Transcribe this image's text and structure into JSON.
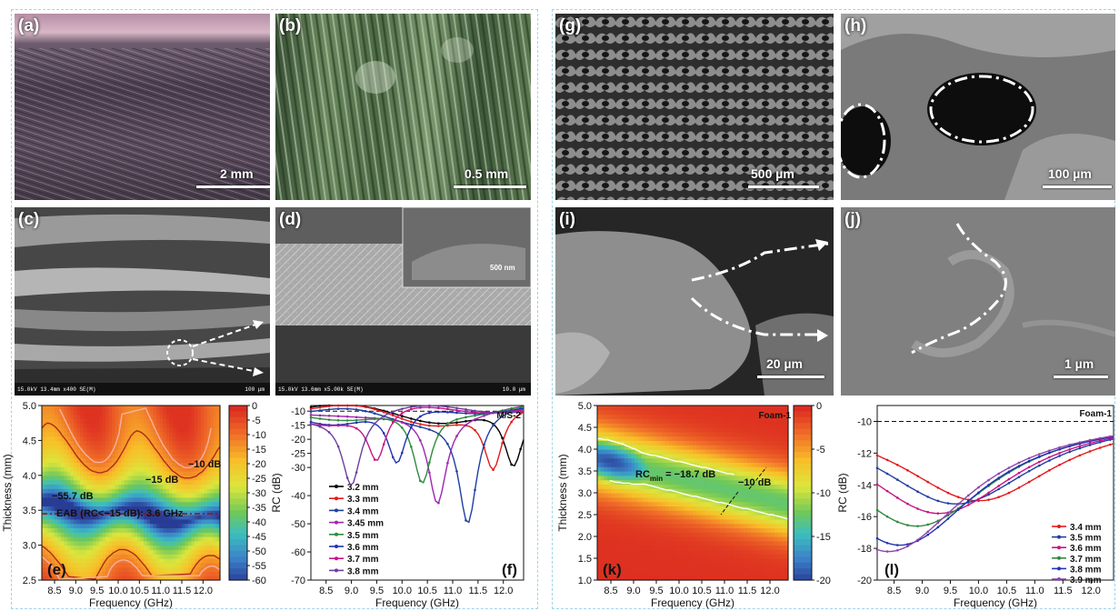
{
  "panels": {
    "a": {
      "letter": "(a)",
      "scale": "2 mm"
    },
    "b": {
      "letter": "(b)",
      "scale": "0.5 mm"
    },
    "c": {
      "letter": "(c)",
      "sem_info": "15.0kV 13.4mm x400 SE(M)",
      "scale": "100 µm"
    },
    "d": {
      "letter": "(d)",
      "sem_info": "15.0kV 13.6mm x5.00k SE(M)",
      "scale": "10.0 µm",
      "inset_scale": "500 nm"
    },
    "g": {
      "letter": "(g)",
      "scale": "500 µm"
    },
    "h": {
      "letter": "(h)",
      "scale": "100 µm"
    },
    "i": {
      "letter": "(i)",
      "scale": "20 µm"
    },
    "j": {
      "letter": "(j)",
      "scale": "1 µm"
    }
  },
  "colors": {
    "frame": "#9fd4ea",
    "contour_high": "#e0392b",
    "contour_mid": "#f7d330",
    "contour_low": "#2b4fa3"
  },
  "chart_data": [
    {
      "id": "e",
      "type": "heatmap",
      "panel_label": "(e)",
      "xlabel": "Frequency (GHz)",
      "ylabel": "Thickness (mm)",
      "xlim": [
        8.2,
        12.4
      ],
      "ylim": [
        2.5,
        5.0
      ],
      "x_ticks": [
        "8.5",
        "9.0",
        "9.5",
        "10.0",
        "10.5",
        "11.0",
        "11.5",
        "12.0"
      ],
      "y_ticks": [
        "2.5",
        "3.0",
        "3.5",
        "4.0",
        "4.5",
        "5.0"
      ],
      "colorbar_ticks": [
        "0",
        "-5",
        "-10",
        "-15",
        "-20",
        "-25",
        "-30",
        "-35",
        "-40",
        "-45",
        "-50",
        "-55",
        "-60"
      ],
      "colorbar_range": [
        -60,
        0
      ],
      "annotations": [
        "−10 dB",
        "−15 dB",
        "−55.7 dB",
        "EAB (RC<−15 dB): 3.6 GHz"
      ],
      "eab_line_thickness": 3.45
    },
    {
      "id": "f",
      "type": "line",
      "panel_label": "(f)",
      "legend_title": "M/S-2",
      "xlabel": "Frequency (GHz)",
      "ylabel": "RC (dB)",
      "xlim": [
        8.2,
        12.4
      ],
      "ylim": [
        -70,
        -8
      ],
      "x_ticks": [
        "8.5",
        "9.0",
        "9.5",
        "10.0",
        "10.5",
        "11.0",
        "11.5",
        "12.0"
      ],
      "y_ticks": [
        "-10",
        "-15",
        "-20",
        "-25",
        "-30",
        "-40",
        "-50",
        "-60",
        "-70"
      ],
      "reference_line": -10,
      "series": [
        {
          "name": "3.2 mm",
          "color": "#000000",
          "min_freq": 12.2,
          "min_rc": -31
        },
        {
          "name": "3.3 mm",
          "color": "#e41a1c",
          "min_freq": 11.8,
          "min_rc": -32
        },
        {
          "name": "3.4 mm",
          "color": "#1f3f9f",
          "min_freq": 11.3,
          "min_rc": -49
        },
        {
          "name": "3.45 mm",
          "color": "#9c27b0",
          "min_freq": 10.7,
          "min_rc": -42
        },
        {
          "name": "3.5 mm",
          "color": "#2e8b3e",
          "min_freq": 10.4,
          "min_rc": -36
        },
        {
          "name": "3.6 mm",
          "color": "#2035b0",
          "min_freq": 9.9,
          "min_rc": -30
        },
        {
          "name": "3.7 mm",
          "color": "#c71585",
          "min_freq": 9.5,
          "min_rc": -28
        },
        {
          "name": "3.8 mm",
          "color": "#6a3fa0",
          "min_freq": 9.0,
          "min_rc": -35
        }
      ]
    },
    {
      "id": "k",
      "type": "heatmap",
      "panel_label": "(k)",
      "legend_title": "Foam-1",
      "xlabel": "Frequency (GHz)",
      "ylabel": "Thickness (mm)",
      "xlim": [
        8.2,
        12.4
      ],
      "ylim": [
        1.0,
        5.0
      ],
      "x_ticks": [
        "8.5",
        "9.0",
        "9.5",
        "10.0",
        "10.5",
        "11.0",
        "11.5",
        "12.0"
      ],
      "y_ticks": [
        "1.0",
        "1.5",
        "2.0",
        "2.5",
        "3.0",
        "3.5",
        "4.0",
        "4.5",
        "5.0"
      ],
      "colorbar_ticks": [
        "0",
        "-5",
        "-10",
        "-15",
        "-20"
      ],
      "colorbar_range": [
        -20,
        0
      ],
      "annotations": [
        "RC",
        "min",
        " = −18.7 dB",
        "−10 dB"
      ]
    },
    {
      "id": "l",
      "type": "line",
      "panel_label": "(l)",
      "legend_title": "Foam-1",
      "xlabel": "Frequency (GHz)",
      "ylabel": "RC (dB)",
      "xlim": [
        8.2,
        12.4
      ],
      "ylim": [
        -20,
        -9
      ],
      "x_ticks": [
        "8.5",
        "9.0",
        "9.5",
        "10.0",
        "10.5",
        "11.0",
        "11.5",
        "12.0"
      ],
      "y_ticks": [
        "-10",
        "-12",
        "-14",
        "-16",
        "-18",
        "-20"
      ],
      "reference_line": -10,
      "series": [
        {
          "name": "3.4 mm",
          "color": "#e41a1c",
          "min_freq": 10.0,
          "min_rc": -15.0
        },
        {
          "name": "3.5 mm",
          "color": "#1f3f9f",
          "min_freq": 9.6,
          "min_rc": -15.2
        },
        {
          "name": "3.6 mm",
          "color": "#c71585",
          "min_freq": 9.3,
          "min_rc": -15.8
        },
        {
          "name": "3.7 mm",
          "color": "#2e8b3e",
          "min_freq": 8.9,
          "min_rc": -16.6
        },
        {
          "name": "3.8 mm",
          "color": "#2035b0",
          "min_freq": 8.6,
          "min_rc": -17.8
        },
        {
          "name": "3.9 mm",
          "color": "#8e44ad",
          "min_freq": 8.4,
          "min_rc": -18.2
        }
      ]
    }
  ]
}
